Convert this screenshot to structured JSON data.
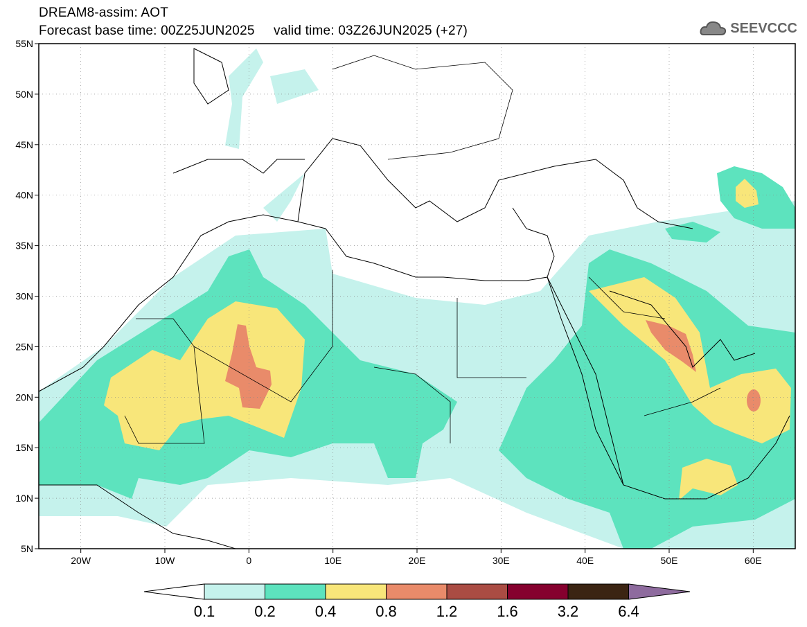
{
  "header": {
    "title": "DREAM8-assim: AOT",
    "base_time": "Forecast base time: 00Z25JUN2025",
    "valid_time": "valid time: 03Z26JUN2025 (+27)"
  },
  "logo": {
    "text": "SEEVCCC"
  },
  "map": {
    "lon_range": [
      -25,
      65
    ],
    "lat_range": [
      5,
      55
    ],
    "lon_ticks": [
      {
        "label": "20W",
        "value": -20
      },
      {
        "label": "10W",
        "value": -10
      },
      {
        "label": "0",
        "value": 0
      },
      {
        "label": "10E",
        "value": 10
      },
      {
        "label": "20E",
        "value": 20
      },
      {
        "label": "30E",
        "value": 30
      },
      {
        "label": "40E",
        "value": 40
      },
      {
        "label": "50E",
        "value": 50
      },
      {
        "label": "60E",
        "value": 60
      }
    ],
    "lat_ticks": [
      {
        "label": "55N",
        "value": 55
      },
      {
        "label": "50N",
        "value": 50
      },
      {
        "label": "45N",
        "value": 45
      },
      {
        "label": "40N",
        "value": 40
      },
      {
        "label": "35N",
        "value": 35
      },
      {
        "label": "30N",
        "value": 30
      },
      {
        "label": "25N",
        "value": 25
      },
      {
        "label": "20N",
        "value": 20
      },
      {
        "label": "15N",
        "value": 15
      },
      {
        "label": "10N",
        "value": 10
      },
      {
        "label": "5N",
        "value": 5
      }
    ]
  },
  "colorbar": {
    "labels": [
      "0.1",
      "0.2",
      "0.4",
      "0.8",
      "1.2",
      "1.6",
      "3.2",
      "6.4"
    ],
    "colors": [
      "#ffffff",
      "#c5f2ec",
      "#5de3be",
      "#f8e67a",
      "#e98b6a",
      "#aa4c43",
      "#85002e",
      "#3b2412",
      "#8e6b9e"
    ]
  }
}
